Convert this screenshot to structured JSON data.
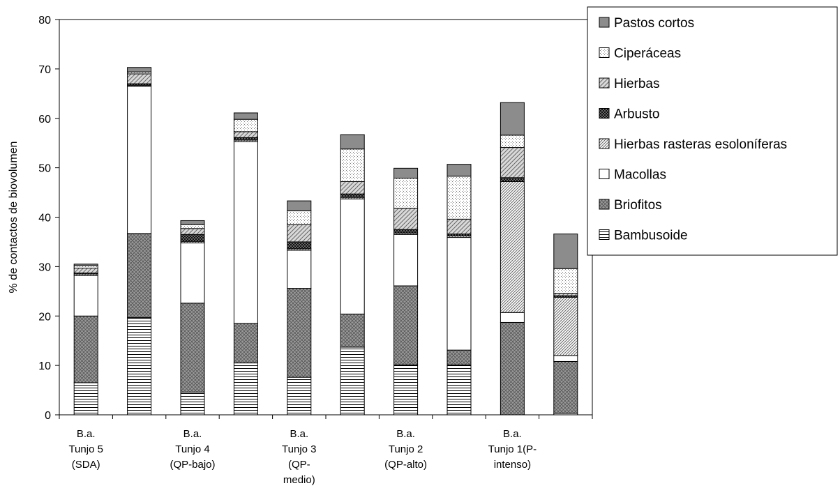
{
  "chart_data": {
    "type": "bar",
    "stacked": true,
    "ylabel": "% de contactos de biovolumen",
    "xlabel": "",
    "ylim": [
      0,
      80
    ],
    "yticks": [
      0,
      10,
      20,
      30,
      40,
      50,
      60,
      70,
      80
    ],
    "grid": false,
    "legend_position": "top-right",
    "categories": [
      [
        "B.a.",
        "Tunjo 5",
        "(SDA)"
      ],
      [],
      [
        "B.a.",
        "Tunjo 4",
        "(QP-bajo)"
      ],
      [],
      [
        "B.a.",
        "Tunjo 3",
        "(QP-",
        "medio)"
      ],
      [],
      [
        "B.a.",
        "Tunjo 2",
        "(QP-alto)"
      ],
      [],
      [
        "B.a.",
        "Tunjo 1(P-",
        "intenso)"
      ],
      []
    ],
    "series": [
      {
        "name": "Bambusoide",
        "pattern": "hlines",
        "fill": "#ffffff",
        "values": [
          6.5,
          19.7,
          4.6,
          10.5,
          7.6,
          13.7,
          10.1,
          10.1,
          0,
          0.3
        ]
      },
      {
        "name": "Briofitos",
        "pattern": "crosshatch",
        "fill": "#9a9a9a",
        "values": [
          13.5,
          17.0,
          18.0,
          8.0,
          18.0,
          6.7,
          16.0,
          3.0,
          18.7,
          10.5
        ]
      },
      {
        "name": "Macollas",
        "pattern": "none",
        "fill": "#ffffff",
        "values": [
          8.2,
          29.8,
          12.2,
          36.8,
          7.7,
          23.3,
          10.4,
          22.8,
          2.0,
          1.2
        ]
      },
      {
        "name": "Hierbas rasteras esoloníferas",
        "pattern": "diag-dense",
        "fill": "#ffffff",
        "values": [
          0.3,
          0.2,
          0.3,
          0.3,
          0.3,
          0.3,
          0.3,
          0.3,
          26.5,
          11.8
        ]
      },
      {
        "name": "Arbusto",
        "pattern": "dark-check",
        "fill": "#222222",
        "values": [
          0.2,
          0.3,
          1.4,
          0.5,
          1.4,
          0.7,
          0.7,
          0.4,
          0.8,
          0.3
        ]
      },
      {
        "name": "Hierbas",
        "pattern": "diag",
        "fill": "#cfcfcf",
        "values": [
          1.0,
          2.0,
          1.2,
          1.2,
          3.5,
          2.5,
          4.3,
          3.0,
          6.1,
          0.5
        ]
      },
      {
        "name": "Ciperáceas",
        "pattern": "dots",
        "fill": "#ffffff",
        "values": [
          0.5,
          0.4,
          0.8,
          2.5,
          2.8,
          6.6,
          6.1,
          8.7,
          2.5,
          5.0
        ]
      },
      {
        "name": "Pastos cortos",
        "pattern": "solid",
        "fill": "#8c8c8c",
        "values": [
          0.3,
          0.9,
          0.8,
          1.3,
          2.0,
          2.9,
          2.0,
          2.4,
          6.6,
          7.0
        ]
      }
    ]
  }
}
